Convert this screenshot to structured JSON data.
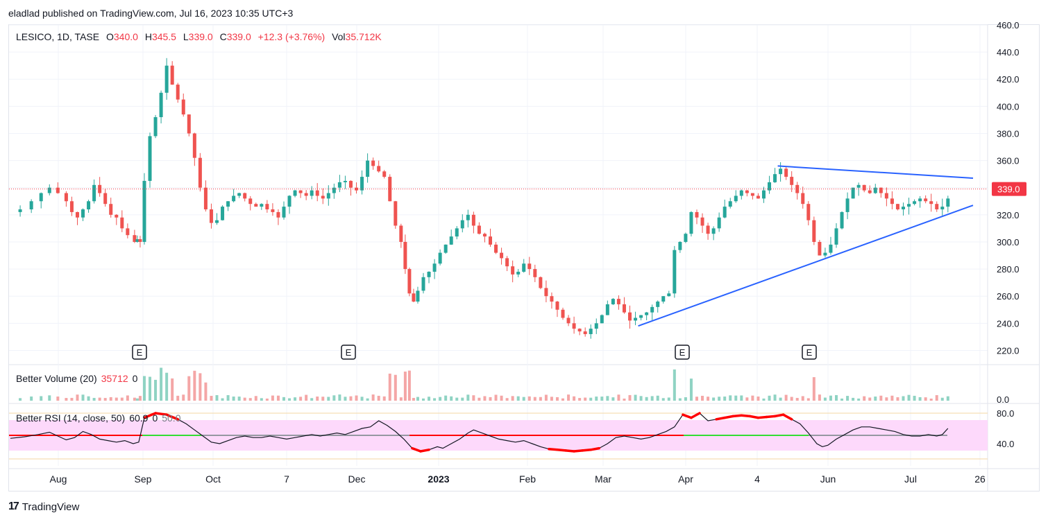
{
  "header": {
    "publisher": "eladlad published on TradingView.com, Jul 16, 2023 10:35 UTC+3"
  },
  "footer": {
    "brand": "TradingView",
    "logo_text": "17"
  },
  "legend": {
    "symbol": "LESICO, 1D, TASE",
    "open_label": "O",
    "open": "340.0",
    "high_label": "H",
    "high": "345.5",
    "low_label": "L",
    "low": "339.0",
    "close_label": "C",
    "close": "339.0",
    "change": "+12.3 (+3.76%)",
    "vol_label": "Vol",
    "vol": "35.712K"
  },
  "volume_panel": {
    "label": "Better Volume (20)",
    "value": "35712",
    "extra": "0",
    "axis_label": "0.0"
  },
  "rsi_panel": {
    "label": "Better RSI (14, close, 50)",
    "value": "60.9",
    "extra": "0",
    "mid": "50.0"
  },
  "colors": {
    "up": "#26a69a",
    "down": "#ef5350",
    "trend": "#2962ff",
    "price_line": "#f23645",
    "rsi_band": "#fdd9fb"
  },
  "chart_data": {
    "type": "candlestick",
    "y_axis": {
      "ylim": [
        210,
        460
      ],
      "ticks": [
        "220.0",
        "240.0",
        "260.0",
        "280.0",
        "300.0",
        "320.0",
        "340.0",
        "360.0",
        "380.0",
        "400.0",
        "420.0",
        "440.0",
        "460.0"
      ]
    },
    "x_axis": {
      "ticks": [
        "Aug",
        "Sep",
        "Oct",
        "7",
        "Dec",
        "2023",
        "Feb",
        "Mar",
        "Apr",
        "4",
        "Jun",
        "Jul",
        "26"
      ]
    },
    "last_price": {
      "value": 339.0,
      "label": "339.0"
    },
    "earnings_markers": [
      "E",
      "E",
      "E",
      "E"
    ],
    "close_path": [
      [
        0,
        322
      ],
      [
        7,
        324
      ],
      [
        15,
        330
      ],
      [
        22,
        336
      ],
      [
        28,
        340
      ],
      [
        34,
        336
      ],
      [
        40,
        330
      ],
      [
        44,
        322
      ],
      [
        48,
        318
      ],
      [
        52,
        324
      ],
      [
        56,
        330
      ],
      [
        60,
        342
      ],
      [
        64,
        336
      ],
      [
        68,
        328
      ],
      [
        72,
        320
      ],
      [
        76,
        318
      ],
      [
        80,
        310
      ],
      [
        84,
        305
      ],
      [
        89,
        300
      ],
      [
        91,
        302
      ],
      [
        93,
        300
      ],
      [
        96,
        345
      ],
      [
        100,
        378
      ],
      [
        104,
        392
      ],
      [
        108,
        410
      ],
      [
        112,
        430
      ],
      [
        116,
        416
      ],
      [
        120,
        405
      ],
      [
        124,
        394
      ],
      [
        128,
        380
      ],
      [
        132,
        362
      ],
      [
        136,
        340
      ],
      [
        140,
        324
      ],
      [
        144,
        314
      ],
      [
        148,
        316
      ],
      [
        152,
        326
      ],
      [
        156,
        330
      ],
      [
        160,
        334
      ],
      [
        164,
        336
      ],
      [
        168,
        332
      ],
      [
        172,
        328
      ],
      [
        176,
        326
      ],
      [
        180,
        328
      ],
      [
        184,
        324
      ],
      [
        188,
        322
      ],
      [
        192,
        318
      ],
      [
        196,
        326
      ],
      [
        200,
        334
      ],
      [
        204,
        338
      ],
      [
        208,
        336
      ],
      [
        212,
        334
      ],
      [
        216,
        338
      ],
      [
        220,
        334
      ],
      [
        224,
        332
      ],
      [
        228,
        336
      ],
      [
        232,
        340
      ],
      [
        236,
        344
      ],
      [
        240,
        345
      ],
      [
        244,
        340
      ],
      [
        248,
        338
      ],
      [
        252,
        348
      ],
      [
        256,
        360
      ],
      [
        260,
        356
      ],
      [
        264,
        352
      ],
      [
        268,
        348
      ],
      [
        272,
        330
      ],
      [
        276,
        312
      ],
      [
        280,
        300
      ],
      [
        283,
        280
      ],
      [
        286,
        262
      ],
      [
        289,
        256
      ],
      [
        292,
        264
      ],
      [
        296,
        274
      ],
      [
        300,
        278
      ],
      [
        304,
        284
      ],
      [
        308,
        292
      ],
      [
        312,
        298
      ],
      [
        316,
        304
      ],
      [
        320,
        310
      ],
      [
        324,
        316
      ],
      [
        328,
        320
      ],
      [
        332,
        312
      ],
      [
        336,
        306
      ],
      [
        340,
        304
      ],
      [
        344,
        298
      ],
      [
        348,
        292
      ],
      [
        352,
        288
      ],
      [
        356,
        282
      ],
      [
        360,
        276
      ],
      [
        364,
        278
      ],
      [
        368,
        284
      ],
      [
        372,
        280
      ],
      [
        376,
        274
      ],
      [
        380,
        266
      ],
      [
        384,
        260
      ],
      [
        388,
        256
      ],
      [
        392,
        250
      ],
      [
        396,
        244
      ],
      [
        400,
        240
      ],
      [
        404,
        236
      ],
      [
        408,
        234
      ],
      [
        412,
        232
      ],
      [
        416,
        236
      ],
      [
        420,
        240
      ],
      [
        424,
        246
      ],
      [
        428,
        254
      ],
      [
        432,
        258
      ],
      [
        436,
        254
      ],
      [
        440,
        248
      ],
      [
        444,
        242
      ],
      [
        448,
        244
      ],
      [
        452,
        246
      ],
      [
        456,
        248
      ],
      [
        460,
        252
      ],
      [
        464,
        256
      ],
      [
        468,
        260
      ],
      [
        472,
        262
      ],
      [
        476,
        294
      ],
      [
        480,
        300
      ],
      [
        484,
        306
      ],
      [
        488,
        322
      ],
      [
        492,
        318
      ],
      [
        496,
        312
      ],
      [
        500,
        306
      ],
      [
        504,
        310
      ],
      [
        508,
        318
      ],
      [
        512,
        326
      ],
      [
        516,
        330
      ],
      [
        520,
        334
      ],
      [
        524,
        338
      ],
      [
        528,
        336
      ],
      [
        532,
        334
      ],
      [
        536,
        332
      ],
      [
        540,
        338
      ],
      [
        544,
        344
      ],
      [
        548,
        350
      ],
      [
        552,
        354
      ],
      [
        556,
        348
      ],
      [
        560,
        342
      ],
      [
        564,
        336
      ],
      [
        568,
        328
      ],
      [
        572,
        316
      ],
      [
        576,
        300
      ],
      [
        580,
        290
      ],
      [
        584,
        292
      ],
      [
        588,
        298
      ],
      [
        592,
        310
      ],
      [
        596,
        322
      ],
      [
        600,
        332
      ],
      [
        604,
        340
      ],
      [
        608,
        342
      ],
      [
        612,
        338
      ],
      [
        616,
        336
      ],
      [
        620,
        340
      ],
      [
        624,
        336
      ],
      [
        628,
        332
      ],
      [
        632,
        328
      ],
      [
        636,
        324
      ],
      [
        640,
        326
      ],
      [
        644,
        328
      ],
      [
        648,
        330
      ],
      [
        652,
        332
      ],
      [
        656,
        330
      ],
      [
        660,
        328
      ],
      [
        664,
        324
      ],
      [
        668,
        326
      ],
      [
        672,
        332
      ]
    ],
    "trendline_upper": [
      [
        550,
        356
      ],
      [
        690,
        347
      ]
    ],
    "trendline_lower": [
      [
        450,
        238
      ],
      [
        690,
        327
      ]
    ],
    "rsi_path": [
      [
        0,
        47
      ],
      [
        10,
        49
      ],
      [
        20,
        52
      ],
      [
        28,
        55
      ],
      [
        34,
        50
      ],
      [
        40,
        45
      ],
      [
        46,
        48
      ],
      [
        52,
        56
      ],
      [
        58,
        52
      ],
      [
        64,
        46
      ],
      [
        70,
        44
      ],
      [
        76,
        42
      ],
      [
        82,
        44
      ],
      [
        88,
        40
      ],
      [
        92,
        42
      ],
      [
        96,
        74
      ],
      [
        104,
        80
      ],
      [
        112,
        78
      ],
      [
        120,
        72
      ],
      [
        126,
        66
      ],
      [
        132,
        58
      ],
      [
        138,
        50
      ],
      [
        144,
        42
      ],
      [
        150,
        40
      ],
      [
        156,
        44
      ],
      [
        162,
        48
      ],
      [
        168,
        50
      ],
      [
        174,
        48
      ],
      [
        180,
        48
      ],
      [
        186,
        50
      ],
      [
        192,
        48
      ],
      [
        198,
        46
      ],
      [
        204,
        48
      ],
      [
        210,
        50
      ],
      [
        216,
        52
      ],
      [
        222,
        50
      ],
      [
        228,
        52
      ],
      [
        234,
        54
      ],
      [
        240,
        52
      ],
      [
        246,
        56
      ],
      [
        252,
        60
      ],
      [
        258,
        62
      ],
      [
        264,
        70
      ],
      [
        270,
        64
      ],
      [
        276,
        56
      ],
      [
        282,
        46
      ],
      [
        288,
        34
      ],
      [
        294,
        30
      ],
      [
        300,
        32
      ],
      [
        306,
        36
      ],
      [
        310,
        34
      ],
      [
        316,
        40
      ],
      [
        322,
        46
      ],
      [
        328,
        54
      ],
      [
        332,
        58
      ],
      [
        338,
        54
      ],
      [
        344,
        50
      ],
      [
        350,
        46
      ],
      [
        356,
        44
      ],
      [
        362,
        42
      ],
      [
        368,
        44
      ],
      [
        374,
        40
      ],
      [
        380,
        36
      ],
      [
        386,
        33
      ],
      [
        392,
        32
      ],
      [
        398,
        31
      ],
      [
        404,
        30
      ],
      [
        410,
        31
      ],
      [
        416,
        32
      ],
      [
        422,
        34
      ],
      [
        428,
        40
      ],
      [
        434,
        48
      ],
      [
        440,
        50
      ],
      [
        446,
        48
      ],
      [
        452,
        46
      ],
      [
        458,
        48
      ],
      [
        464,
        52
      ],
      [
        470,
        56
      ],
      [
        476,
        62
      ],
      [
        482,
        78
      ],
      [
        488,
        74
      ],
      [
        494,
        80
      ],
      [
        500,
        70
      ],
      [
        506,
        72
      ],
      [
        512,
        74
      ],
      [
        518,
        76
      ],
      [
        524,
        77
      ],
      [
        530,
        76
      ],
      [
        536,
        74
      ],
      [
        542,
        75
      ],
      [
        548,
        76
      ],
      [
        554,
        78
      ],
      [
        560,
        72
      ],
      [
        566,
        66
      ],
      [
        572,
        54
      ],
      [
        578,
        40
      ],
      [
        582,
        36
      ],
      [
        586,
        38
      ],
      [
        592,
        46
      ],
      [
        598,
        52
      ],
      [
        604,
        58
      ],
      [
        610,
        62
      ],
      [
        616,
        62
      ],
      [
        622,
        60
      ],
      [
        628,
        58
      ],
      [
        634,
        56
      ],
      [
        640,
        52
      ],
      [
        646,
        50
      ],
      [
        652,
        50
      ],
      [
        658,
        52
      ],
      [
        664,
        50
      ],
      [
        668,
        52
      ],
      [
        672,
        60
      ]
    ]
  }
}
